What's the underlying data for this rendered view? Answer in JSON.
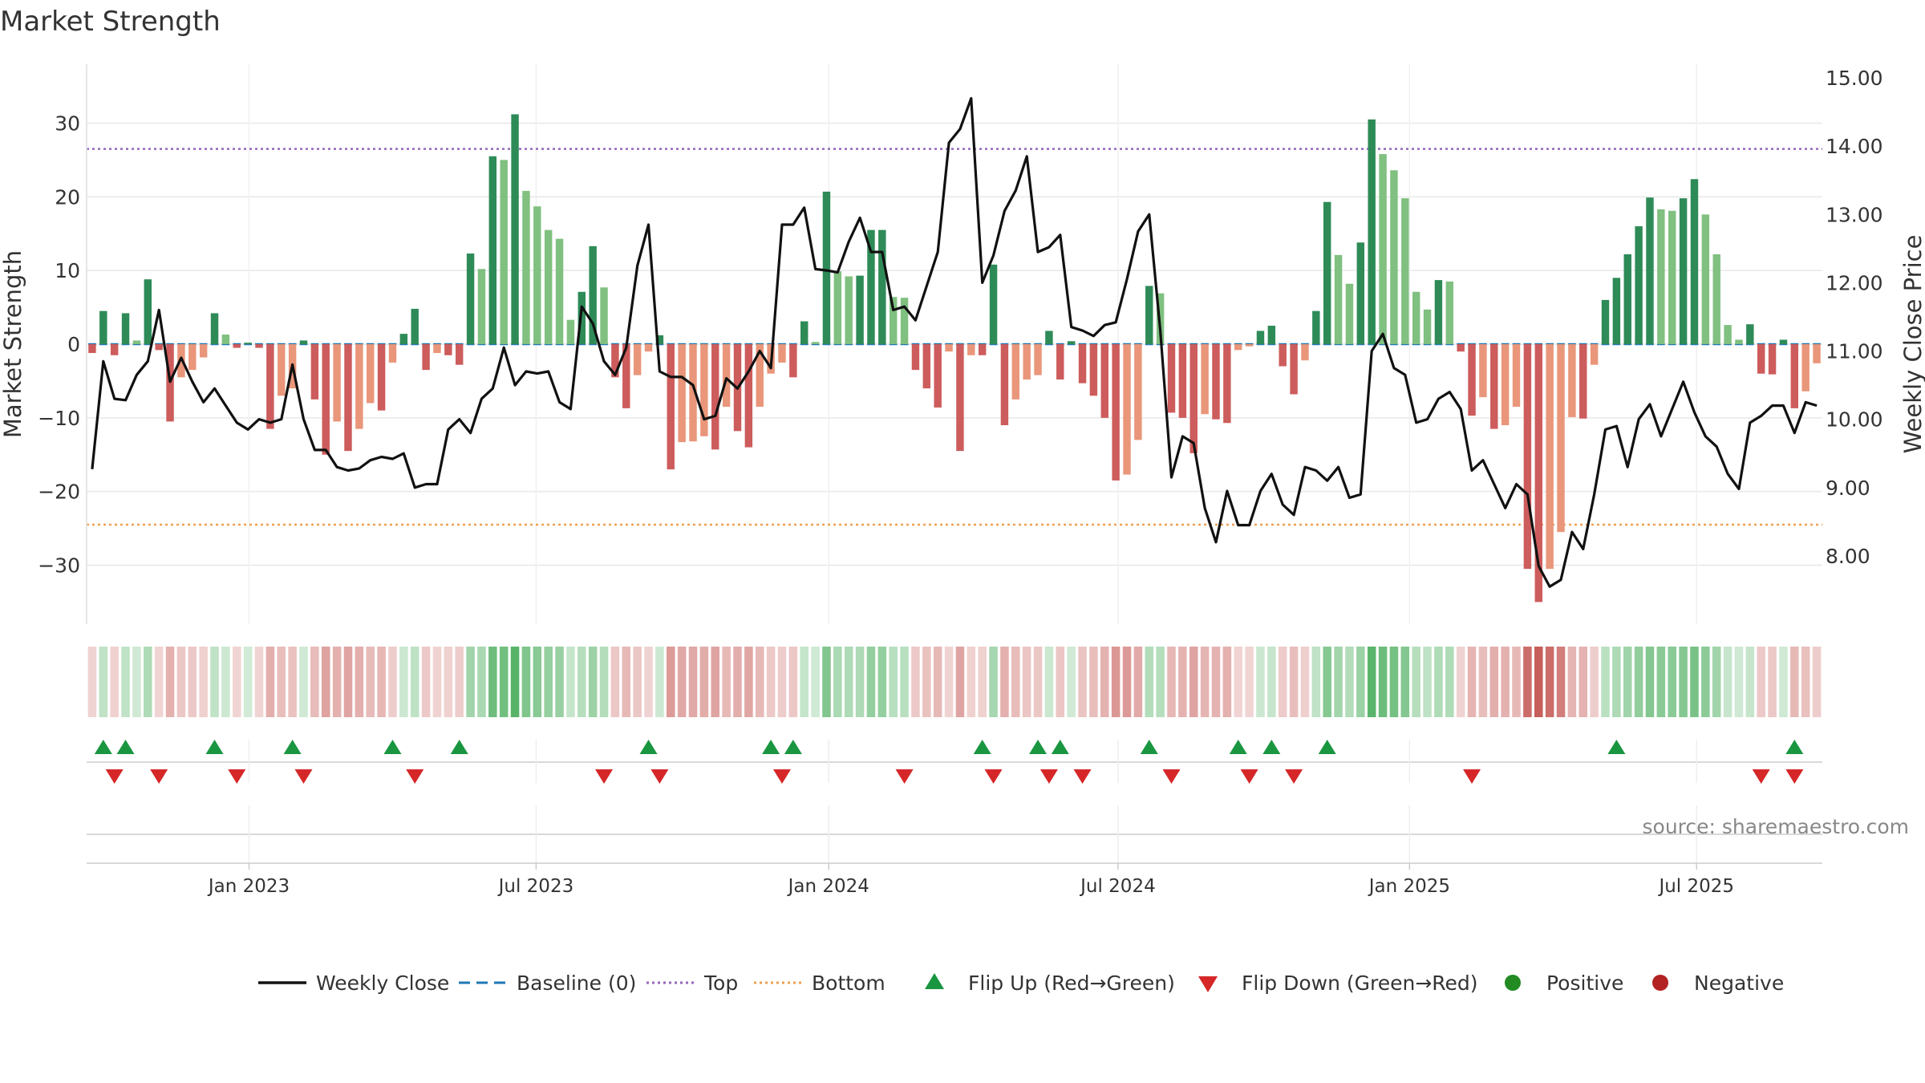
{
  "chart_data": {
    "type": "bar",
    "title": "Market Strength",
    "y_left_label": "Market Strength",
    "y_right_label": "Weekly Close Price",
    "y_left_range": [
      -38,
      38
    ],
    "y_right_range": [
      7.0,
      15.2
    ],
    "y_left_ticks": [
      -30,
      -20,
      -10,
      0,
      10,
      20,
      30
    ],
    "y_left_tick_labels": [
      "−30",
      "−20",
      "−10",
      "0",
      "10",
      "20",
      "30"
    ],
    "y_right_ticks": [
      8,
      9,
      10,
      11,
      12,
      13,
      14,
      15
    ],
    "y_right_tick_labels": [
      "8.00",
      "9.00",
      "10.00",
      "11.00",
      "12.00",
      "13.00",
      "14.00",
      "15.00"
    ],
    "x_tick_labels": [
      "Jan 2023",
      "Jul 2023",
      "Jan 2024",
      "Jul 2024",
      "Jan 2025",
      "Jul 2025"
    ],
    "x_tick_weeks": [
      14.6,
      40.4,
      66.7,
      92.7,
      118.9,
      144.7
    ],
    "top_level": 26.5,
    "bottom_level": -24.5,
    "baseline": 0,
    "source_note": "source: sharemaestro.com",
    "market_strength": [
      -1.2,
      4.5,
      -1.5,
      4.2,
      0.5,
      8.8,
      -0.8,
      -10.5,
      -4.5,
      -3.5,
      -1.8,
      4.2,
      1.3,
      -0.5,
      0.2,
      -0.5,
      -11.5,
      -7.0,
      -6.0,
      0.5,
      -7.5,
      -15.0,
      -10.5,
      -14.5,
      -11.5,
      -8.0,
      -9.0,
      -2.5,
      1.4,
      4.8,
      -3.5,
      -1.2,
      -1.5,
      -2.8,
      12.3,
      10.2,
      25.5,
      25.0,
      31.2,
      20.8,
      18.7,
      15.5,
      14.3,
      3.3,
      7.1,
      13.3,
      7.7,
      -4.5,
      -8.7,
      -4.2,
      -1.0,
      1.2,
      -17.0,
      -13.3,
      -13.2,
      -12.5,
      -14.3,
      -8.5,
      -11.8,
      -14.0,
      -8.5,
      -4.0,
      -2.5,
      -4.5,
      3.1,
      0.3,
      20.7,
      9.9,
      9.2,
      9.3,
      15.5,
      15.5,
      6.4,
      6.3,
      -3.5,
      -6.0,
      -8.6,
      -1.0,
      -14.5,
      -1.5,
      -1.5,
      10.8,
      -11.0,
      -7.5,
      -4.8,
      -4.2,
      1.8,
      -4.8,
      0.4,
      -5.3,
      -7.0,
      -10.0,
      -18.5,
      -17.7,
      -13.0,
      7.9,
      6.9,
      -9.3,
      -10.0,
      -14.8,
      -9.5,
      -10.2,
      -10.7,
      -0.8,
      -0.3,
      1.8,
      2.5,
      -3.0,
      -6.8,
      -2.2,
      4.5,
      19.3,
      12.1,
      8.2,
      13.8,
      30.5,
      25.8,
      23.6,
      19.8,
      7.1,
      4.7,
      8.7,
      8.5,
      -1.0,
      -9.7,
      -7.2,
      -11.5,
      -11.0,
      -8.5,
      -30.5,
      -35.0,
      -30.5,
      -25.5,
      -9.9,
      -10.1,
      -2.8,
      6.0,
      9.0,
      12.2,
      16.0,
      19.9,
      18.3,
      18.1,
      19.8,
      22.4,
      17.6,
      12.2,
      2.6,
      0.6,
      2.7,
      -4.0,
      -4.1,
      0.6,
      -8.7,
      -6.4,
      -2.6
    ],
    "weekly_close": [
      9.27,
      10.85,
      10.3,
      10.28,
      10.65,
      10.85,
      11.6,
      10.55,
      10.9,
      10.55,
      10.25,
      10.45,
      10.2,
      9.95,
      9.85,
      10.0,
      9.95,
      10.0,
      10.8,
      10.0,
      9.55,
      9.55,
      9.3,
      9.25,
      9.28,
      9.4,
      9.45,
      9.42,
      9.5,
      9.0,
      9.05,
      9.05,
      9.85,
      10.0,
      9.8,
      10.3,
      10.45,
      11.05,
      10.5,
      10.7,
      10.67,
      10.7,
      10.25,
      10.15,
      11.65,
      11.4,
      10.85,
      10.65,
      11.05,
      12.25,
      12.85,
      10.7,
      10.62,
      10.62,
      10.5,
      10.0,
      10.05,
      10.6,
      10.45,
      10.7,
      11.0,
      10.75,
      12.85,
      12.85,
      13.1,
      12.2,
      12.18,
      12.15,
      12.6,
      12.95,
      12.45,
      12.45,
      11.6,
      11.65,
      11.45,
      11.95,
      12.45,
      14.05,
      14.25,
      14.7,
      12.0,
      12.4,
      13.05,
      13.35,
      13.85,
      12.45,
      12.52,
      12.7,
      11.35,
      11.3,
      11.22,
      11.38,
      11.42,
      12.05,
      12.75,
      13.0,
      11.3,
      9.15,
      9.75,
      9.65,
      8.7,
      8.2,
      8.95,
      8.45,
      8.45,
      8.95,
      9.2,
      8.75,
      8.6,
      9.3,
      9.25,
      9.1,
      9.3,
      8.85,
      8.9,
      11.0,
      11.25,
      10.75,
      10.65,
      9.95,
      10.0,
      10.3,
      10.4,
      10.15,
      9.25,
      9.4,
      9.05,
      8.7,
      9.05,
      8.9,
      7.85,
      7.55,
      7.65,
      8.35,
      8.1,
      8.9,
      9.85,
      9.9,
      9.3,
      10.0,
      10.22,
      9.75,
      10.15,
      10.55,
      10.1,
      9.75,
      9.6,
      9.2,
      8.98,
      9.95,
      10.05,
      10.2,
      10.2,
      9.8,
      10.25,
      10.2
    ],
    "flip_up_weeks": [
      1,
      3,
      11,
      18,
      27,
      33,
      50,
      61,
      63,
      80,
      85,
      87,
      95,
      103,
      106,
      111,
      137,
      153
    ],
    "flip_down_weeks": [
      2,
      6,
      13,
      19,
      29,
      46,
      51,
      62,
      73,
      81,
      86,
      89,
      97,
      104,
      108,
      124,
      150,
      153
    ],
    "legend": [
      {
        "label": "Weekly Close",
        "kind": "line"
      },
      {
        "label": "Baseline (0)",
        "kind": "dash"
      },
      {
        "label": "Top",
        "kind": "dot-purple"
      },
      {
        "label": "Bottom",
        "kind": "dot-orange"
      },
      {
        "label": "Flip Up (Red→Green)",
        "kind": "tri-up"
      },
      {
        "label": "Flip Down (Green→Red)",
        "kind": "tri-down"
      },
      {
        "label": "Positive",
        "kind": "circle-green"
      },
      {
        "label": "Negative",
        "kind": "circle-red"
      }
    ],
    "colors": {
      "pos_strong": "#2e8b57",
      "pos_weak": "#80c080",
      "neg_strong": "#cd5c5c",
      "neg_weak": "#e9967a",
      "price_line": "#111111",
      "baseline": "#1f77b4",
      "top": "#9467bd",
      "bottom": "#f0a050",
      "flip_up": "#1a9641",
      "flip_down": "#d62728",
      "positive_dot": "#228b22",
      "negative_dot": "#b22222",
      "grid": "#e8e8e8",
      "axis_text": "#333333",
      "source": "#888888"
    }
  }
}
